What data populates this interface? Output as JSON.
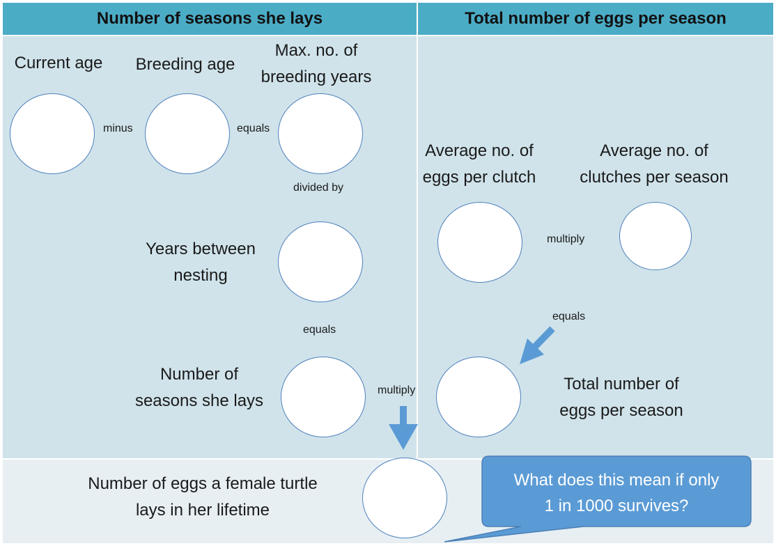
{
  "headers": {
    "left": "Number of seasons she lays",
    "right": "Total number of eggs per season"
  },
  "labels": {
    "current_age": "Current age",
    "breeding_age": "Breeding age",
    "max_breeding_line1": "Max. no. of",
    "max_breeding_line2": "breeding years",
    "years_between_line1": "Years between",
    "years_between_line2": "nesting",
    "seasons_line1": "Number of",
    "seasons_line2": "seasons she lays",
    "avg_eggs_line1": "Average no. of",
    "avg_eggs_line2": "eggs per clutch",
    "avg_clutches_line1": "Average no. of",
    "avg_clutches_line2": "clutches per season",
    "total_eggs_line1": "Total number of",
    "total_eggs_line2": "eggs per season",
    "lifetime_line1": "Number of eggs a female turtle",
    "lifetime_line2": "lays in her lifetime"
  },
  "operators": {
    "minus": "minus",
    "equals_1": "equals",
    "divided_by": "divided by",
    "equals_2": "equals",
    "multiply_1": "multiply",
    "multiply_2": "multiply",
    "equals_3": "equals"
  },
  "callout": {
    "line1": "What does this mean if only",
    "line2": "1 in 1000 survives?"
  },
  "colors": {
    "header": "#4bacc6",
    "panel": "#d0e3ea",
    "bottom": "#e7eff3",
    "circle_border": "#4f81bd",
    "arrow": "#5b9bd5",
    "callout": "#5b9bd5"
  }
}
